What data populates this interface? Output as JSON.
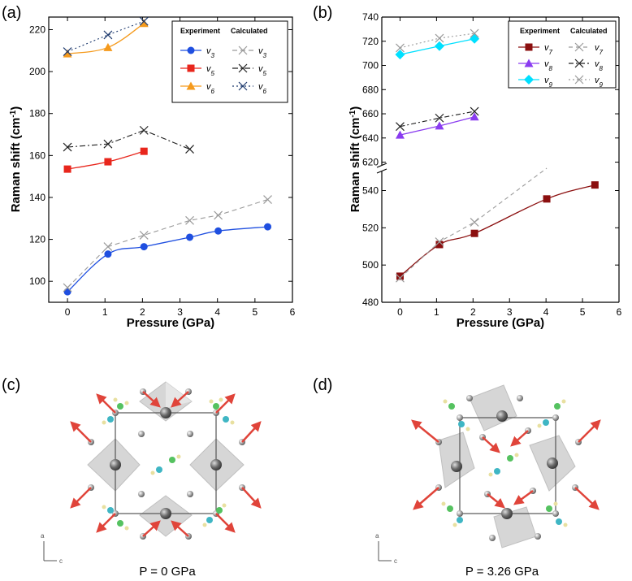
{
  "colors": {
    "v3": "#1f4fe0",
    "v5": "#e8261c",
    "v6": "#f59a1c",
    "v7": "#8b0f0f",
    "v8": "#8a3cf0",
    "v9": "#00e0ff",
    "calc_gray": "#9a9a9a",
    "calc_dark": "#202020",
    "calc_blue": "#1e3a6e",
    "arrow": "#e0443a",
    "octa": "#d0d0d0",
    "atom": "#8a8a8a"
  },
  "chart_data": [
    {
      "type": "line",
      "panel_label": "(a)",
      "xlabel": "Pressure (GPa)",
      "ylabel": "Raman shift (cm",
      "ylabel_sup": "-1",
      "ylabel_close": ")",
      "xlim": [
        -0.5,
        6
      ],
      "ylim": [
        90,
        226
      ],
      "xticks": [
        "0",
        "1",
        "2",
        "3",
        "4",
        "5",
        "6"
      ],
      "yticks": [
        "100",
        "120",
        "140",
        "160",
        "180",
        "200",
        "220"
      ],
      "legend_headers": {
        "experiment": "Experiment",
        "calculated": "Calculated"
      },
      "series": [
        {
          "name": "v3",
          "label_sym": "v",
          "label_sub": "3",
          "kind": "experiment",
          "color_key": "v3",
          "marker": "circle",
          "x": [
            0,
            1.08,
            2.04,
            3.26,
            4.02,
            5.34
          ],
          "y": [
            95,
            113,
            116.5,
            121,
            124,
            126
          ]
        },
        {
          "name": "v5",
          "label_sym": "v",
          "label_sub": "5",
          "kind": "experiment",
          "color_key": "v5",
          "marker": "square",
          "x": [
            0,
            1.08,
            2.04
          ],
          "y": [
            153.5,
            157,
            162
          ]
        },
        {
          "name": "v6",
          "label_sym": "v",
          "label_sub": "6",
          "kind": "experiment",
          "color_key": "v6",
          "marker": "triangle",
          "x": [
            0,
            1.08,
            2.04
          ],
          "y": [
            208.5,
            211.5,
            223
          ]
        },
        {
          "name": "v3 calc",
          "label_sym": "v",
          "label_sub": "3",
          "kind": "calculated",
          "color_key": "calc_gray",
          "dash": "6,4",
          "x": [
            0,
            1.08,
            2.04,
            3.26,
            4.02,
            5.34
          ],
          "y": [
            97,
            116.5,
            122,
            129,
            131.5,
            139
          ]
        },
        {
          "name": "v5 calc",
          "label_sym": "v",
          "label_sub": "5",
          "kind": "calculated",
          "color_key": "calc_dark",
          "dash": "7,3,2,3",
          "x": [
            0,
            1.08,
            2.04,
            3.26
          ],
          "y": [
            164,
            165.5,
            172,
            163
          ]
        },
        {
          "name": "v6 calc",
          "label_sym": "v",
          "label_sub": "6",
          "kind": "calculated",
          "color_key": "calc_blue",
          "dash": "2,3",
          "x": [
            0,
            1.08,
            2.04
          ],
          "y": [
            209.5,
            217.5,
            224
          ]
        }
      ]
    },
    {
      "type": "line",
      "panel_label": "(b)",
      "xlabel": "Pressure (GPa)",
      "ylabel": "Raman shift (cm",
      "ylabel_sup": "-1",
      "ylabel_close": ")",
      "xlim": [
        -0.5,
        6
      ],
      "broken_axis": true,
      "upper_ylim": [
        615,
        740
      ],
      "lower_ylim": [
        480,
        552
      ],
      "xticks": [
        "0",
        "1",
        "2",
        "3",
        "4",
        "5",
        "6"
      ],
      "upper_yticks": [
        "620",
        "640",
        "660",
        "680",
        "700",
        "720",
        "740"
      ],
      "lower_yticks": [
        "480",
        "500",
        "520",
        "540"
      ],
      "legend_headers": {
        "experiment": "Experiment",
        "calculated": "Calculated"
      },
      "series": [
        {
          "name": "v7",
          "label_sym": "v",
          "label_sub": "7",
          "kind": "experiment",
          "color_key": "v7",
          "marker": "square",
          "segment": "lower",
          "x": [
            0,
            1.08,
            2.04,
            4.02,
            5.34
          ],
          "y": [
            494,
            511,
            517,
            535.5,
            543
          ]
        },
        {
          "name": "v8",
          "label_sym": "v",
          "label_sub": "8",
          "kind": "experiment",
          "color_key": "v8",
          "marker": "triangle",
          "segment": "upper",
          "x": [
            0,
            1.08,
            2.04
          ],
          "y": [
            642.5,
            650,
            657.5
          ]
        },
        {
          "name": "v9",
          "label_sym": "v",
          "label_sub": "9",
          "kind": "experiment",
          "color_key": "v9",
          "marker": "diamond",
          "segment": "upper",
          "x": [
            0,
            1.08,
            2.04
          ],
          "y": [
            709,
            716,
            722
          ]
        },
        {
          "name": "v7 calc",
          "label_sym": "v",
          "label_sub": "7",
          "kind": "calculated",
          "color_key": "calc_gray",
          "dash": "5,4",
          "segment": "lower",
          "x": [
            0,
            1.08,
            2.04,
            4.02
          ],
          "y": [
            493,
            512.5,
            523,
            552
          ]
        },
        {
          "name": "v8 calc",
          "label_sym": "v",
          "label_sub": "8",
          "kind": "calculated",
          "color_key": "calc_dark",
          "dash": "6,3,2,3",
          "segment": "upper",
          "x": [
            0,
            1.08,
            2.04
          ],
          "y": [
            649.5,
            656.5,
            662
          ]
        },
        {
          "name": "v9 calc",
          "label_sym": "v",
          "label_sub": "9",
          "kind": "calculated",
          "color_key": "calc_gray",
          "dash": "2,3",
          "segment": "upper",
          "x": [
            0,
            1.08,
            2.04
          ],
          "y": [
            714.5,
            722.5,
            726.5
          ]
        }
      ]
    }
  ],
  "structures": [
    {
      "panel_label": "(c)",
      "caption": "P = 0 GPa",
      "axis_a": "a",
      "axis_c": "c"
    },
    {
      "panel_label": "(d)",
      "caption": "P = 3.26 GPa",
      "axis_a": "a",
      "axis_c": "c"
    }
  ]
}
